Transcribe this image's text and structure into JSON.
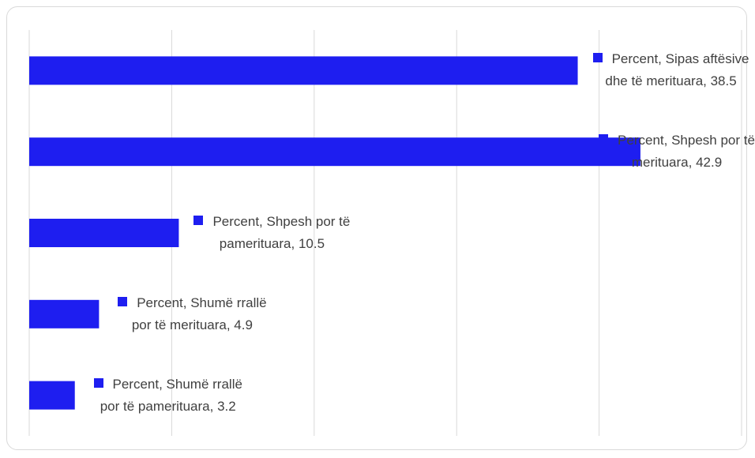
{
  "chart_data": {
    "type": "bar",
    "orientation": "horizontal",
    "values": [
      38.5,
      42.9,
      10.5,
      4.9,
      3.2
    ],
    "value_labels": [
      "Percent, Sipas aftësive dhe të merituara, 38.5",
      "Percent, Shpesh por të merituara, 42.9",
      "Percent, Shpesh por të pamerituara, 10.5",
      "Percent, Shumë rrallë por të merituara, 4.9",
      "Percent, Shumë rrallë por të pamerituara, 3.2"
    ],
    "color": "#1e1ef0",
    "xlim": [
      0,
      50
    ],
    "xticks": [
      0,
      10,
      20,
      30,
      40,
      50
    ],
    "grid": true
  }
}
